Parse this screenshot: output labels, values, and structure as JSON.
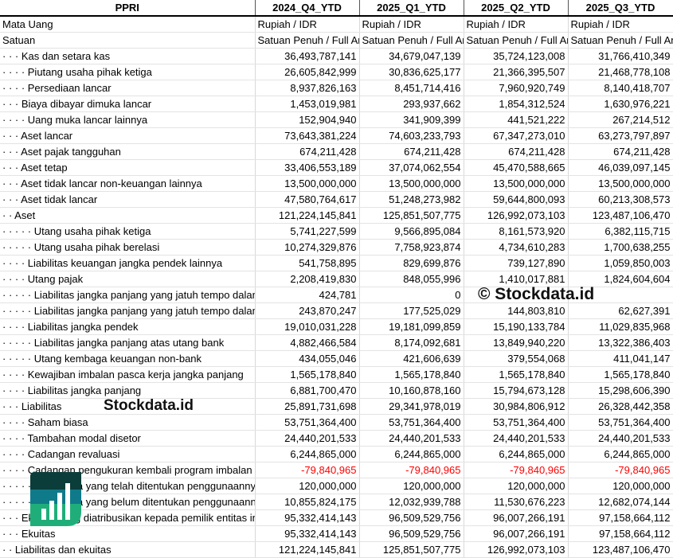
{
  "table": {
    "headers": [
      "PPRI",
      "2024_Q4_YTD",
      "2025_Q1_YTD",
      "2025_Q2_YTD",
      "2025_Q3_YTD"
    ],
    "meta_rows": [
      {
        "label": "Mata Uang",
        "values": [
          "Rupiah / IDR",
          "Rupiah / IDR",
          "Rupiah / IDR",
          "Rupiah / IDR"
        ]
      },
      {
        "label": "Satuan",
        "values": [
          "Satuan Penuh / Full Amount",
          "Satuan Penuh / Full Amount",
          "Satuan Penuh / Full Amount",
          "Satuan Penuh / Full Amount"
        ]
      }
    ],
    "rows": [
      {
        "label": "· · · Kas dan setara kas",
        "values": [
          "36,493,787,141",
          "34,679,047,139",
          "35,724,123,008",
          "31,766,410,349"
        ]
      },
      {
        "label": "· · · · Piutang usaha pihak ketiga",
        "values": [
          "26,605,842,999",
          "30,836,625,177",
          "21,366,395,507",
          "21,468,778,108"
        ]
      },
      {
        "label": "· · · · Persediaan lancar",
        "values": [
          "8,937,826,163",
          "8,451,714,416",
          "7,960,920,749",
          "8,140,418,707"
        ]
      },
      {
        "label": "· · · Biaya dibayar dimuka lancar",
        "values": [
          "1,453,019,981",
          "293,937,662",
          "1,854,312,524",
          "1,630,976,221"
        ]
      },
      {
        "label": "· · · · Uang muka lancar lainnya",
        "values": [
          "152,904,940",
          "341,909,399",
          "441,521,222",
          "267,214,512"
        ]
      },
      {
        "label": "· · · Aset lancar",
        "values": [
          "73,643,381,224",
          "74,603,233,793",
          "67,347,273,010",
          "63,273,797,897"
        ]
      },
      {
        "label": "· · · Aset pajak tangguhan",
        "values": [
          "674,211,428",
          "674,211,428",
          "674,211,428",
          "674,211,428"
        ]
      },
      {
        "label": "· · · Aset tetap",
        "values": [
          "33,406,553,189",
          "37,074,062,554",
          "45,470,588,665",
          "46,039,097,145"
        ]
      },
      {
        "label": "· · · Aset tidak lancar non-keuangan lainnya",
        "values": [
          "13,500,000,000",
          "13,500,000,000",
          "13,500,000,000",
          "13,500,000,000"
        ]
      },
      {
        "label": "· · · Aset tidak lancar",
        "values": [
          "47,580,764,617",
          "51,248,273,982",
          "59,644,800,093",
          "60,213,308,573"
        ]
      },
      {
        "label": "· · Aset",
        "values": [
          "121,224,145,841",
          "125,851,507,775",
          "126,992,073,103",
          "123,487,106,470"
        ]
      },
      {
        "label": "· · · · · Utang usaha pihak ketiga",
        "values": [
          "5,741,227,599",
          "9,566,895,084",
          "8,161,573,920",
          "6,382,115,715"
        ]
      },
      {
        "label": "· · · · · Utang usaha pihak berelasi",
        "values": [
          "10,274,329,876",
          "7,758,923,874",
          "4,734,610,283",
          "1,700,638,255"
        ]
      },
      {
        "label": "· · · · Liabilitas keuangan jangka pendek lainnya",
        "values": [
          "541,758,895",
          "829,699,876",
          "739,127,890",
          "1,059,850,003"
        ]
      },
      {
        "label": "· · · · Utang pajak",
        "values": [
          "2,208,419,830",
          "848,055,996",
          "1,410,017,881",
          "1,824,604,604"
        ]
      },
      {
        "label": "· · · · · Liabilitas jangka panjang yang jatuh tempo dalam satu tahun",
        "values": [
          "424,781",
          "0",
          "",
          ""
        ]
      },
      {
        "label": "· · · · · Liabilitas jangka panjang yang jatuh tempo dalam satu tahun",
        "values": [
          "243,870,247",
          "177,525,029",
          "144,803,810",
          "62,627,391"
        ]
      },
      {
        "label": "· · · · Liabilitas jangka pendek",
        "values": [
          "19,010,031,228",
          "19,181,099,859",
          "15,190,133,784",
          "11,029,835,968"
        ]
      },
      {
        "label": "· · · · · Liabilitas jangka panjang atas utang bank",
        "values": [
          "4,882,466,584",
          "8,174,092,681",
          "13,849,940,220",
          "13,322,386,403"
        ]
      },
      {
        "label": "· · · · · Utang kembaga keuangan non-bank",
        "values": [
          "434,055,046",
          "421,606,639",
          "379,554,068",
          "411,041,147"
        ]
      },
      {
        "label": "· · · · Kewajiban imbalan pasca kerja jangka panjang",
        "values": [
          "1,565,178,840",
          "1,565,178,840",
          "1,565,178,840",
          "1,565,178,840"
        ]
      },
      {
        "label": "· · · · Liabilitas jangka panjang",
        "values": [
          "6,881,700,470",
          "10,160,878,160",
          "15,794,673,128",
          "15,298,606,390"
        ]
      },
      {
        "label": "· · · Liabilitas",
        "values": [
          "25,891,731,698",
          "29,341,978,019",
          "30,984,806,912",
          "26,328,442,358"
        ]
      },
      {
        "label": "· · · · Saham biasa",
        "values": [
          "53,751,364,400",
          "53,751,364,400",
          "53,751,364,400",
          "53,751,364,400"
        ]
      },
      {
        "label": "· · · · Tambahan modal disetor",
        "values": [
          "24,440,201,533",
          "24,440,201,533",
          "24,440,201,533",
          "24,440,201,533"
        ]
      },
      {
        "label": "· · · · Cadangan revaluasi",
        "values": [
          "6,244,865,000",
          "6,244,865,000",
          "6,244,865,000",
          "6,244,865,000"
        ]
      },
      {
        "label": "· · · · Cadangan pengukuran kembali program imbalan pasti",
        "values": [
          "-79,840,965",
          "-79,840,965",
          "-79,840,965",
          "-79,840,965"
        ],
        "negative": true
      },
      {
        "label": "· · · · · Saldo laba yang telah ditentukan penggunaannya",
        "values": [
          "120,000,000",
          "120,000,000",
          "120,000,000",
          "120,000,000"
        ]
      },
      {
        "label": "· · · · · Saldo laba yang belum ditentukan penggunaannya",
        "values": [
          "10,855,824,175",
          "12,032,939,788",
          "11,530,676,223",
          "12,682,074,144"
        ]
      },
      {
        "label": "· · · Ekuitas yang diatribusikan kepada pemilik entitas induk",
        "values": [
          "95,332,414,143",
          "96,509,529,756",
          "96,007,266,191",
          "97,158,664,112"
        ]
      },
      {
        "label": "· · · Ekuitas",
        "values": [
          "95,332,414,143",
          "96,509,529,756",
          "96,007,266,191",
          "97,158,664,112"
        ]
      },
      {
        "label": "· · Liabilitas dan ekuitas",
        "values": [
          "121,224,145,841",
          "125,851,507,775",
          "126,992,073,103",
          "123,487,106,470"
        ]
      }
    ]
  },
  "watermark": {
    "caption": "© Stockdata.id",
    "logo_text": "Stockdata.id"
  },
  "colors": {
    "negative": "#ff0000",
    "logo_dark": "#0b3d3a",
    "logo_mid": "#0f7a8a",
    "logo_light": "#1fae7a"
  }
}
